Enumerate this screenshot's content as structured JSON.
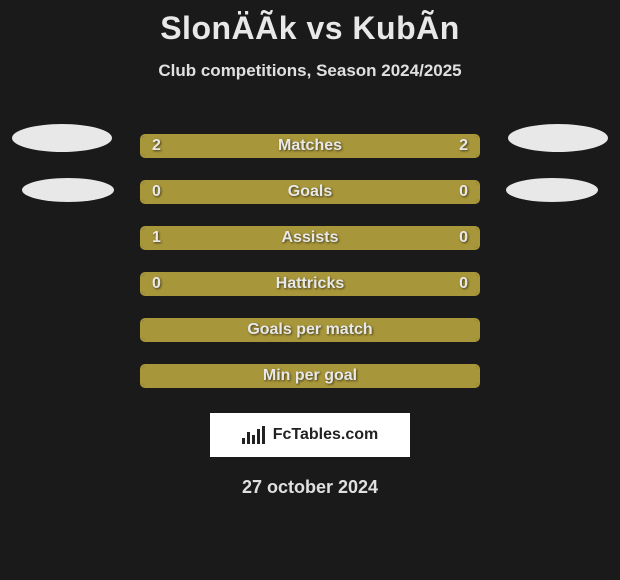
{
  "header": {
    "title": "SlonÄÃk vs KubÃn",
    "subtitle": "Club competitions, Season 2024/2025"
  },
  "colors": {
    "background": "#1a1a1a",
    "bar_border": "#a8963a",
    "bar_fill": "#a8963a",
    "text": "#e8e8e8",
    "oval": "#e8e8e8",
    "footer_bg": "#ffffff",
    "footer_text": "#222222"
  },
  "stats": [
    {
      "label": "Matches",
      "left_value": "2",
      "right_value": "2",
      "left_pct": 50,
      "right_pct": 50
    },
    {
      "label": "Goals",
      "left_value": "0",
      "right_value": "0",
      "left_pct": 50,
      "right_pct": 50
    },
    {
      "label": "Assists",
      "left_value": "1",
      "right_value": "0",
      "left_pct": 78,
      "right_pct": 22
    },
    {
      "label": "Hattricks",
      "left_value": "0",
      "right_value": "0",
      "left_pct": 50,
      "right_pct": 50
    },
    {
      "label": "Goals per match",
      "left_value": "",
      "right_value": "",
      "left_pct": 100,
      "right_pct": 0
    },
    {
      "label": "Min per goal",
      "left_value": "",
      "right_value": "",
      "left_pct": 100,
      "right_pct": 0
    }
  ],
  "footer": {
    "brand": "FcTables.com",
    "date": "27 october 2024"
  }
}
